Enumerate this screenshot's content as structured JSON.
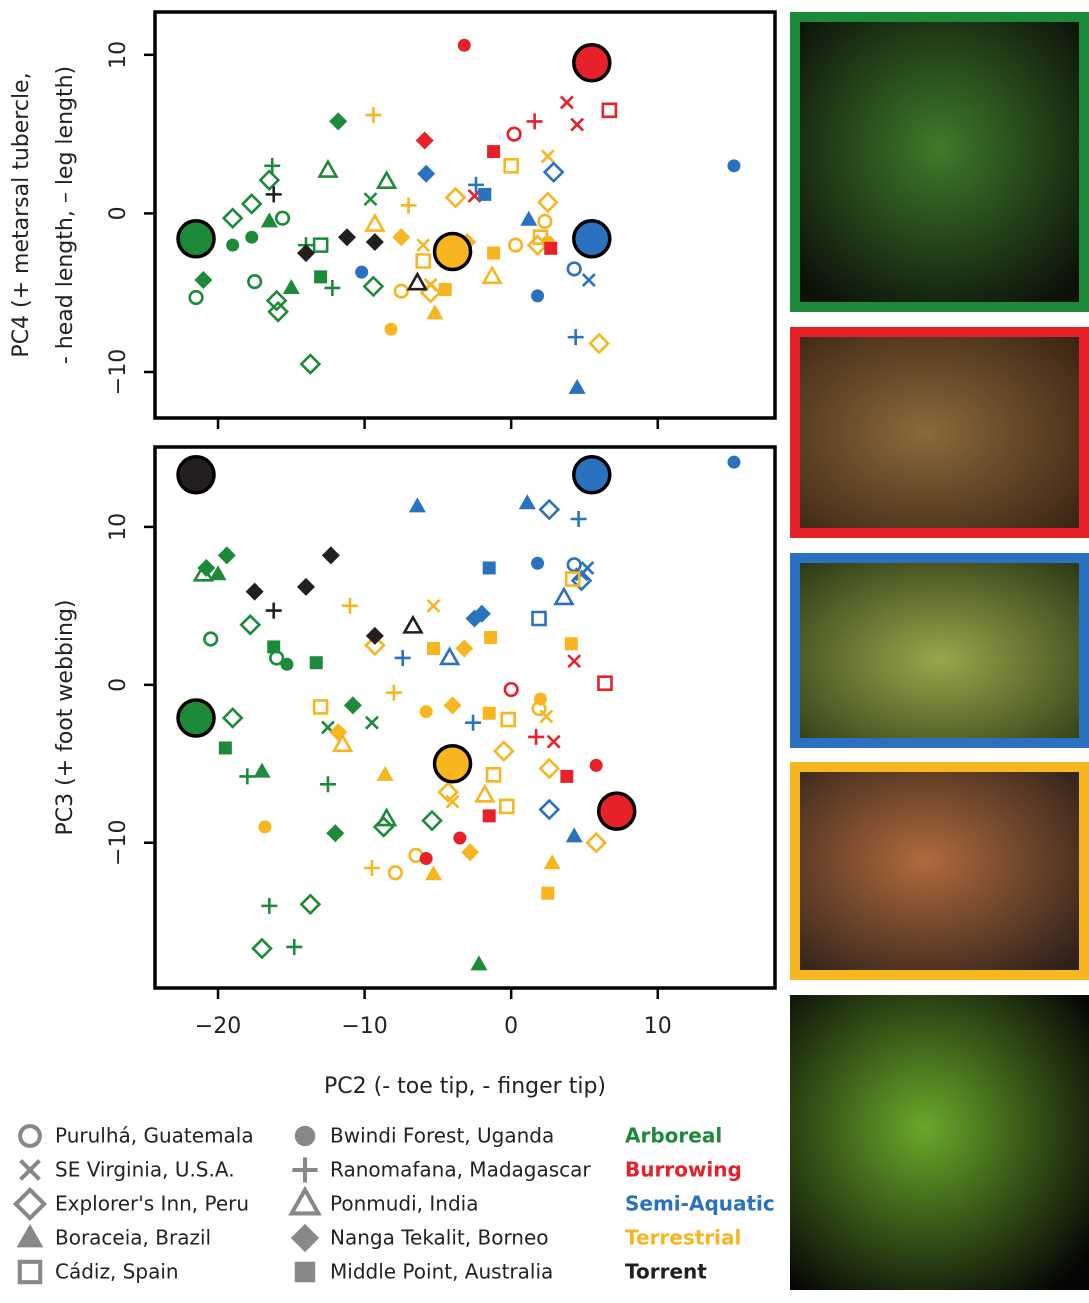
{
  "legend_habitats": [
    {
      "name": "Arboreal",
      "color": "#1d8a3a"
    },
    {
      "name": "Burrowing",
      "color": "#e62129"
    },
    {
      "name": "Semi-Aquatic",
      "color": "#2a71bf"
    },
    {
      "name": "Terrestrial",
      "color": "#f7b520"
    },
    {
      "name": "Torrent",
      "color": "#231f20"
    }
  ],
  "chart_data": [
    {
      "type": "scatter",
      "ylabel": [
        "PC4 (+ metarsal tubercle,",
        "- head length, – leg length)"
      ],
      "xlim": [
        -24.3,
        18
      ],
      "xticks": [
        -20,
        -10,
        0,
        10
      ],
      "xtick_labels": false,
      "ylim": [
        -12.9,
        12.7
      ],
      "yticks": [
        {
          "value": -10,
          "label": "−10"
        },
        0,
        10
      ],
      "series": [
        {
          "name": "Purulhá, Guatemala",
          "marker": "circle-open",
          "x": [
            -21.5,
            -15.6,
            0.3,
            0.2,
            4.3,
            2.3,
            -7.5,
            -17.5
          ],
          "y": [
            -5.3,
            -0.3,
            -2,
            5,
            -3.5,
            -0.5,
            -4.9,
            -4.3
          ],
          "colors": [
            "#1d8a3a",
            "#1d8a3a",
            "#f7b520",
            "#e62129",
            "#2a71bf",
            "#f7b520",
            "#f7b520",
            "#1d8a3a"
          ]
        },
        {
          "name": "SE Virginia, U.S.A.",
          "marker": "x",
          "x": [
            4.5,
            3.8,
            5.3,
            2.5,
            -9.6,
            -6,
            -2.5,
            -5.5
          ],
          "y": [
            5.6,
            7,
            -4.2,
            3.6,
            0.9,
            -2,
            1.1,
            -4.5
          ],
          "colors": [
            "#e62129",
            "#e62129",
            "#2a71bf",
            "#f7b520",
            "#1d8a3a",
            "#f7b520",
            "#e62129",
            "#f7b520"
          ]
        },
        {
          "name": "Explorer's Inn, Peru",
          "marker": "diamond-open",
          "x": [
            -16.5,
            -19,
            -17.7,
            -16,
            -15.9,
            -13.7,
            2.9,
            6,
            2.5,
            -3.8,
            -5.5,
            -9.4,
            1.8
          ],
          "y": [
            2.1,
            -0.3,
            0.6,
            -5.5,
            -6.2,
            -9.5,
            2.6,
            -8.2,
            0.7,
            1,
            -5,
            -4.6,
            -2
          ],
          "colors": [
            "#1d8a3a",
            "#1d8a3a",
            "#1d8a3a",
            "#1d8a3a",
            "#1d8a3a",
            "#1d8a3a",
            "#2a71bf",
            "#f7b520",
            "#f7b520",
            "#f7b520",
            "#f7b520",
            "#1d8a3a",
            "#f7b520"
          ]
        },
        {
          "name": "Boraceia, Brazil",
          "marker": "triangle",
          "x": [
            4.5,
            -5.2,
            -15,
            1.2,
            -16.5
          ],
          "y": [
            -11,
            -6.3,
            -4.7,
            -0.4,
            -0.5
          ],
          "colors": [
            "#2a71bf",
            "#f7b520",
            "#1d8a3a",
            "#2a71bf",
            "#1d8a3a"
          ]
        },
        {
          "name": "Cádiz, Spain",
          "marker": "square-open",
          "x": [
            6.7,
            0,
            2,
            -6,
            -13
          ],
          "y": [
            6.5,
            3,
            -1.5,
            -3,
            -2
          ],
          "colors": [
            "#e62129",
            "#f7b520",
            "#f7b520",
            "#f7b520",
            "#1d8a3a"
          ]
        },
        {
          "name": "Bwindi Forest, Uganda",
          "marker": "circle",
          "x": [
            15.2,
            -3.2,
            -8.2,
            1.8,
            -19,
            -17.7,
            2.5,
            -10.2
          ],
          "y": [
            3,
            10.6,
            -7.3,
            -5.2,
            -2,
            -1.5,
            -1.8,
            -3.7
          ],
          "colors": [
            "#2a71bf",
            "#e62129",
            "#f7b520",
            "#2a71bf",
            "#1d8a3a",
            "#1d8a3a",
            "#f7b520",
            "#2a71bf"
          ]
        },
        {
          "name": "Ranomafana, Madagascar",
          "marker": "plus",
          "x": [
            -9.4,
            1.6,
            4.4,
            -16.3,
            -16.2,
            -12.2,
            -7,
            -2.4,
            -14
          ],
          "y": [
            6.2,
            5.8,
            -7.8,
            3,
            1.2,
            -4.7,
            0.5,
            1.8,
            -2
          ],
          "colors": [
            "#f7b520",
            "#e62129",
            "#2a71bf",
            "#1d8a3a",
            "#231f20",
            "#1d8a3a",
            "#f7b520",
            "#2a71bf",
            "#1d8a3a"
          ]
        },
        {
          "name": "Ponmudi, India",
          "marker": "triangle-open",
          "x": [
            -12.5,
            -8.5,
            -6.4,
            -9.3,
            -1.3
          ],
          "y": [
            2.7,
            2,
            -4.4,
            -0.7,
            -4
          ],
          "colors": [
            "#1d8a3a",
            "#1d8a3a",
            "#231f20",
            "#f7b520",
            "#f7b520"
          ]
        },
        {
          "name": "Nanga Tekalit, Borneo",
          "marker": "diamond",
          "x": [
            -11.8,
            -5.9,
            -5.8,
            -14,
            -11.2,
            -9.3,
            -21,
            -7.5,
            -3
          ],
          "y": [
            5.8,
            4.6,
            2.5,
            -2.5,
            -1.5,
            -1.8,
            -4.2,
            -1.5,
            -1.8
          ],
          "colors": [
            "#1d8a3a",
            "#e62129",
            "#2a71bf",
            "#231f20",
            "#231f20",
            "#231f20",
            "#1d8a3a",
            "#f7b520",
            "#f7b520"
          ]
        },
        {
          "name": "Middle Point, Australia",
          "marker": "square",
          "x": [
            5.2,
            -1.2,
            2.7,
            -1.8,
            -13,
            -1.2,
            -4.5
          ],
          "y": [
            9,
            3.9,
            -2.2,
            1.2,
            -4,
            -2.5,
            -4.8
          ],
          "colors": [
            "#e62129",
            "#e62129",
            "#e62129",
            "#2a71bf",
            "#1d8a3a",
            "#f7b520",
            "#f7b520"
          ]
        }
      ],
      "centroids": {
        "x": [
          -21.5,
          -4,
          5.5,
          5.5
        ],
        "y": [
          -1.6,
          -2.4,
          -1.6,
          9.5
        ],
        "colors": [
          "#1d8a3a",
          "#f7b520",
          "#2a71bf",
          "#e62129"
        ]
      }
    },
    {
      "type": "scatter",
      "xlabel": "PC2 (- toe tip, - finger tip)",
      "ylabel": [
        "PC3 (+ foot webbing)"
      ],
      "xlim": [
        -24.3,
        18
      ],
      "xticks": [
        {
          "value": -20,
          "label": "−20"
        },
        {
          "value": -10,
          "label": "−10"
        },
        0,
        10
      ],
      "xtick_labels": true,
      "ylim": [
        -19.2,
        15.06
      ],
      "yticks": [
        {
          "value": -10,
          "label": "−10"
        },
        0,
        10
      ],
      "series": [
        {
          "name": "Purulhá, Guatemala",
          "marker": "circle-open",
          "x": [
            -20.5,
            0,
            1.9,
            4.3,
            -7.9,
            -6.5,
            -16
          ],
          "y": [
            2.9,
            -0.3,
            -1.5,
            7.6,
            -11.9,
            -10.8,
            1.7
          ],
          "colors": [
            "#1d8a3a",
            "#e62129",
            "#f7b520",
            "#2a71bf",
            "#f7b520",
            "#f7b520",
            "#1d8a3a"
          ]
        },
        {
          "name": "SE Virginia, U.S.A.",
          "marker": "x",
          "x": [
            4.3,
            2.9,
            5.2,
            4.8,
            2.4,
            -5.3,
            -9.5,
            -12.5,
            -4
          ],
          "y": [
            1.5,
            -3.6,
            7.4,
            7,
            -2,
            5,
            -2.4,
            -2.7,
            -7.4
          ],
          "colors": [
            "#e62129",
            "#e62129",
            "#2a71bf",
            "#2a71bf",
            "#f7b520",
            "#f7b520",
            "#1d8a3a",
            "#1d8a3a",
            "#f7b520"
          ]
        },
        {
          "name": "Explorer's Inn, Peru",
          "marker": "diamond-open",
          "x": [
            2.6,
            4.8,
            5.8,
            2.6,
            -17,
            -13.7,
            -8.7,
            -5.4,
            -17.8,
            -19,
            -9.3,
            -4.3,
            2.6,
            -0.5
          ],
          "y": [
            11.1,
            6.6,
            -10,
            -5.3,
            -16.7,
            -13.9,
            -9,
            -8.6,
            3.8,
            -2.1,
            2.5,
            -6.8,
            -7.9,
            -4.2
          ],
          "colors": [
            "#2a71bf",
            "#2a71bf",
            "#f7b520",
            "#f7b520",
            "#1d8a3a",
            "#1d8a3a",
            "#1d8a3a",
            "#1d8a3a",
            "#1d8a3a",
            "#1d8a3a",
            "#f7b520",
            "#f7b520",
            "#2a71bf",
            "#f7b520"
          ]
        },
        {
          "name": "Boraceia, Brazil",
          "marker": "triangle",
          "x": [
            -6.4,
            1.1,
            -20,
            4.3,
            -5.3,
            2.8,
            -17,
            -2.2,
            -8.6
          ],
          "y": [
            11.3,
            11.5,
            7,
            -9.6,
            -12,
            -11.3,
            -5.5,
            -17.7,
            -5.7
          ],
          "colors": [
            "#2a71bf",
            "#2a71bf",
            "#1d8a3a",
            "#2a71bf",
            "#f7b520",
            "#f7b520",
            "#1d8a3a",
            "#1d8a3a",
            "#f7b520"
          ]
        },
        {
          "name": "Cádiz, Spain",
          "marker": "square-open",
          "x": [
            6.4,
            1.9,
            -0.2,
            -1.2,
            -13,
            -0.3,
            4.2
          ],
          "y": [
            0.1,
            4.2,
            -2.2,
            -5.7,
            -1.4,
            -7.7,
            6.7
          ],
          "colors": [
            "#e62129",
            "#2a71bf",
            "#f7b520",
            "#f7b520",
            "#f7b520",
            "#f7b520",
            "#f7b520"
          ]
        },
        {
          "name": "Bwindi Forest, Uganda",
          "marker": "circle",
          "x": [
            15.2,
            1.8,
            5.8,
            -16.8,
            -5.8,
            -3.5,
            -5.8,
            2,
            -15.3
          ],
          "y": [
            14.1,
            7.7,
            -5.1,
            -9,
            -11,
            -9.7,
            -1.7,
            -0.9,
            1.3
          ],
          "colors": [
            "#2a71bf",
            "#2a71bf",
            "#e62129",
            "#f7b520",
            "#e62129",
            "#e62129",
            "#f7b520",
            "#f7b520",
            "#1d8a3a"
          ]
        },
        {
          "name": "Ranomafana, Madagascar",
          "marker": "plus",
          "x": [
            4.6,
            -7.4,
            -2.6,
            1.7,
            -11,
            -8,
            -9.5,
            -16.5,
            -14.8,
            -18,
            -12.5,
            -16.2
          ],
          "y": [
            10.5,
            1.7,
            -2.4,
            -3.3,
            5,
            -0.5,
            -11.6,
            -14,
            -16.6,
            -5.8,
            -6.3,
            4.7
          ],
          "colors": [
            "#2a71bf",
            "#2a71bf",
            "#2a71bf",
            "#e62129",
            "#f7b520",
            "#f7b520",
            "#f7b520",
            "#1d8a3a",
            "#1d8a3a",
            "#1d8a3a",
            "#1d8a3a",
            "#231f20"
          ]
        },
        {
          "name": "Ponmudi, India",
          "marker": "triangle-open",
          "x": [
            -21,
            -6.7,
            -4.2,
            3.6,
            -8.5,
            -11.5,
            -1.8
          ],
          "y": [
            7,
            3.7,
            1.7,
            5.5,
            -8.5,
            -3.8,
            -7
          ],
          "colors": [
            "#1d8a3a",
            "#231f20",
            "#2a71bf",
            "#2a71bf",
            "#1d8a3a",
            "#f7b520",
            "#f7b520"
          ]
        },
        {
          "name": "Nanga Tekalit, Borneo",
          "marker": "diamond",
          "x": [
            -19.4,
            -20.8,
            -12.3,
            -14,
            -17.5,
            -9.3,
            -2.5,
            -2,
            -3.2,
            -4,
            -2.8,
            -11.8,
            -12,
            -10.8
          ],
          "y": [
            8.2,
            7.4,
            8.2,
            6.2,
            5.9,
            3.1,
            4.2,
            4.5,
            2.3,
            -1.3,
            -10.6,
            -3,
            -9.4,
            -1.3
          ],
          "colors": [
            "#1d8a3a",
            "#1d8a3a",
            "#231f20",
            "#231f20",
            "#231f20",
            "#231f20",
            "#2a71bf",
            "#2a71bf",
            "#f7b520",
            "#f7b520",
            "#f7b520",
            "#f7b520",
            "#1d8a3a",
            "#1d8a3a"
          ]
        },
        {
          "name": "Middle Point, Australia",
          "marker": "square",
          "x": [
            -1.5,
            -1.4,
            -5.3,
            -1.5,
            4.1,
            3.8,
            -1.5,
            2.5,
            -19.5,
            -16.2,
            -13.3
          ],
          "y": [
            7.4,
            3,
            2.3,
            -1.8,
            2.6,
            -5.8,
            -8.3,
            -13.2,
            -4,
            2.4,
            1.4
          ],
          "colors": [
            "#2a71bf",
            "#f7b520",
            "#f7b520",
            "#f7b520",
            "#f7b520",
            "#e62129",
            "#e62129",
            "#f7b520",
            "#1d8a3a",
            "#1d8a3a",
            "#1d8a3a"
          ]
        }
      ],
      "centroids": {
        "x": [
          -21.5,
          5.5,
          -21.5,
          -4,
          7.2
        ],
        "y": [
          13.3,
          13.3,
          -2.1,
          -5,
          -8
        ],
        "colors": [
          "#231f20",
          "#2a71bf",
          "#1d8a3a",
          "#f7b520",
          "#e62129"
        ]
      }
    }
  ]
}
